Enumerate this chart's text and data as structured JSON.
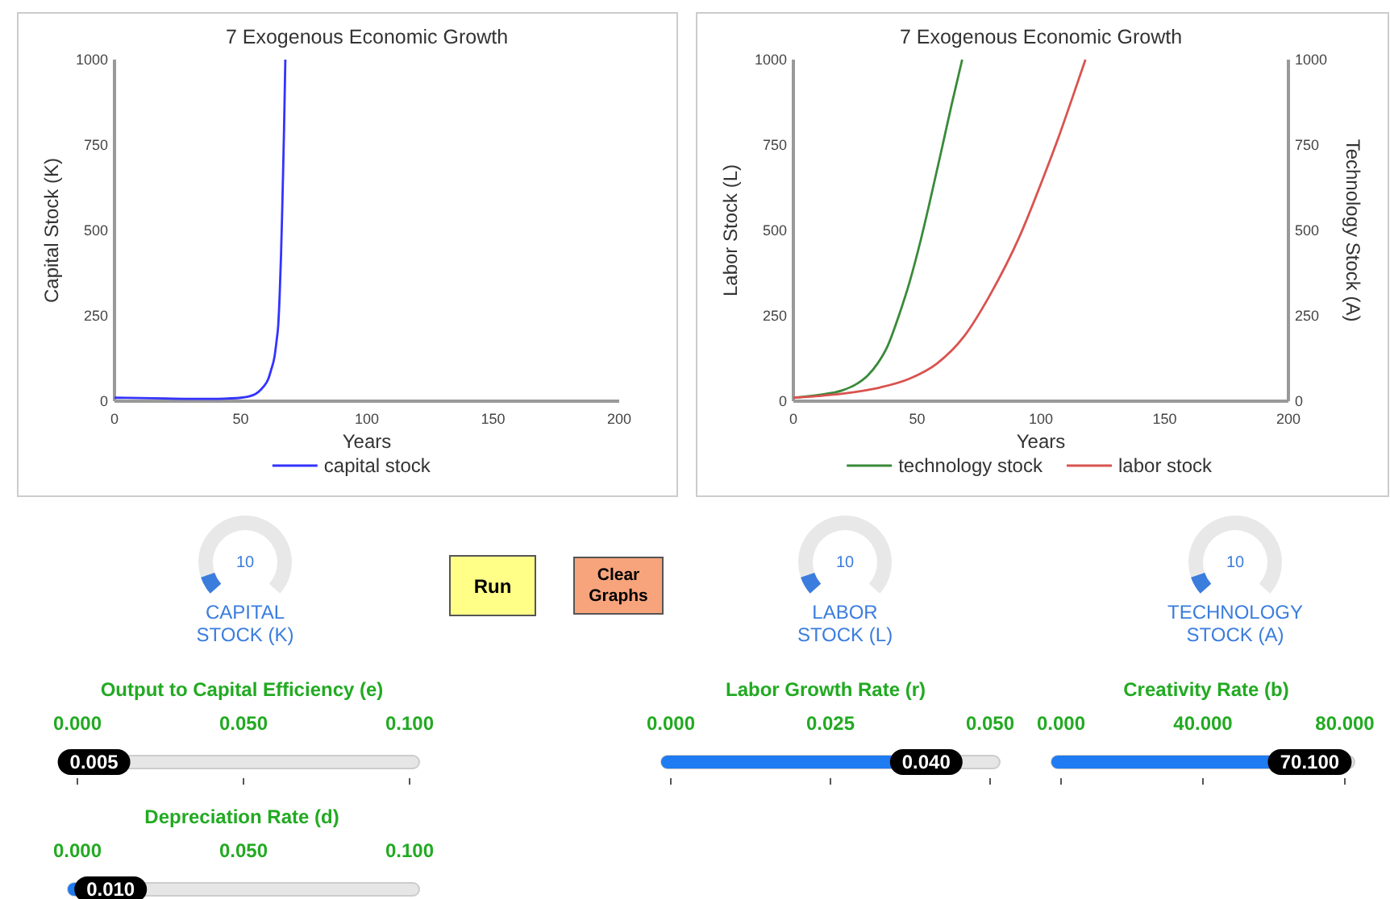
{
  "chart_data": [
    {
      "type": "line",
      "title": "7 Exogenous Economic Growth",
      "xlabel": "Years",
      "ylabel": "Capital Stock (K)",
      "xlim": [
        0,
        200
      ],
      "xticks": [
        0,
        50,
        100,
        150,
        200
      ],
      "ylim": [
        0,
        1000
      ],
      "yticks": [
        0,
        250,
        500,
        750,
        1000
      ],
      "legend": "bottom",
      "series": [
        {
          "name": "capital stock",
          "color": "#3333ff",
          "x": [
            0,
            10,
            20,
            30,
            40,
            45,
            50,
            55,
            57,
            59,
            61,
            62,
            63.4,
            64.2,
            64.9,
            65.5,
            66,
            66.4,
            66.8,
            67.2,
            67.7
          ],
          "values": [
            10,
            9,
            8,
            7,
            7,
            8,
            10,
            18,
            27,
            42,
            66,
            90,
            130,
            175,
            224,
            320,
            430,
            540,
            666,
            800,
            1000
          ]
        }
      ]
    },
    {
      "type": "line",
      "title": "7 Exogenous Economic Growth",
      "xlabel": "Years",
      "ylabel": "Labor Stock (L)",
      "y2label": "Technology Stock (A)",
      "xlim": [
        0,
        200
      ],
      "xticks": [
        0,
        50,
        100,
        150,
        200
      ],
      "ylim": [
        0,
        1000
      ],
      "yticks": [
        0,
        250,
        500,
        750,
        1000
      ],
      "y2lim": [
        0,
        1000
      ],
      "y2ticks": [
        0,
        250,
        500,
        750,
        1000
      ],
      "legend": "bottom",
      "series": [
        {
          "name": "technology stock",
          "color": "#3a8a3a",
          "x": [
            0,
            10,
            20,
            25,
            30,
            34,
            38,
            42.6,
            47,
            51.4,
            55,
            60,
            64,
            68.2
          ],
          "values": [
            10,
            18,
            32,
            48,
            75,
            110,
            160,
            250,
            350,
            470,
            580,
            740,
            870,
            1000
          ]
        },
        {
          "name": "labor stock",
          "color": "#d9534f",
          "x": [
            0,
            10,
            20,
            25,
            35,
            47,
            58,
            69,
            80,
            91,
            101.6,
            107,
            112.6,
            118
          ],
          "values": [
            10,
            15,
            22,
            27,
            40,
            66,
            110,
            190,
            318,
            476,
            666,
            770,
            886,
            1000
          ]
        }
      ]
    },
    {
      "type": "other",
      "annotations": [
        "10",
        "CAPITAL STOCK (K)",
        "Run",
        "Clear Graphs",
        "10",
        "LABOR STOCK (L)",
        "10",
        "TECHNOLOGY STOCK (A)",
        "Output to Capital Efficiency (e)",
        "0.000",
        "0.050",
        "0.100",
        "0.005",
        "Depreciation Rate (d)",
        "0.000",
        "0.050",
        "0.100",
        "0.010",
        "Labor Growth Rate (r)",
        "0.000",
        "0.025",
        "0.050",
        "0.040",
        "Creativity Rate (b)",
        "0.000",
        "40.000",
        "80.000",
        "70.100"
      ]
    }
  ]
}
